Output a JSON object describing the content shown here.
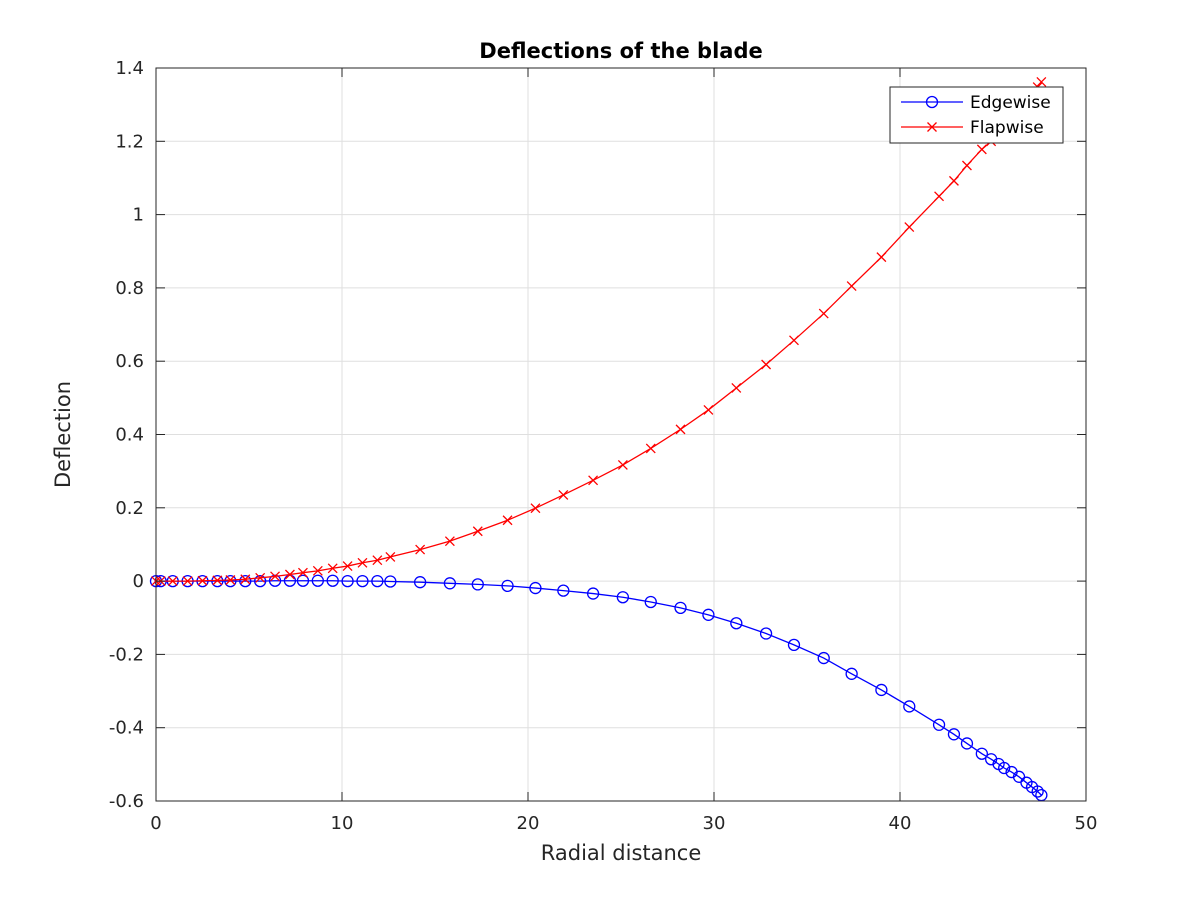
{
  "chart_data": {
    "type": "line",
    "title": "Deflections of the blade",
    "xlabel": "Radial distance",
    "ylabel": "Deflection",
    "xlim": [
      0,
      50
    ],
    "ylim": [
      -0.6,
      1.4
    ],
    "xticks": [
      0,
      10,
      20,
      30,
      40,
      50
    ],
    "xtick_labels": [
      "0",
      "10",
      "20",
      "30",
      "40",
      "50"
    ],
    "yticks": [
      -0.6,
      -0.4,
      -0.2,
      0,
      0.2,
      0.4,
      0.6,
      0.8,
      1,
      1.2,
      1.4
    ],
    "ytick_labels": [
      "-0.6",
      "-0.4",
      "-0.2",
      "0",
      "0.2",
      "0.4",
      "0.6",
      "0.8",
      "1",
      "1.2",
      "1.4"
    ],
    "grid": true,
    "legend_position": "top-right",
    "series": [
      {
        "name": "Edgewise",
        "color": "#0000ff",
        "marker": "circle",
        "x": [
          0,
          0.25,
          0.9,
          1.7,
          2.5,
          3.3,
          4.0,
          4.8,
          5.6,
          6.4,
          7.2,
          7.9,
          8.7,
          9.5,
          10.3,
          11.1,
          11.9,
          12.6,
          14.2,
          15.8,
          17.3,
          18.9,
          20.4,
          21.9,
          23.5,
          25.1,
          26.6,
          28.2,
          29.7,
          31.2,
          32.8,
          34.3,
          35.9,
          37.4,
          39.0,
          40.5,
          42.1,
          42.9,
          43.6,
          44.4,
          44.9,
          45.3,
          45.6,
          46.0,
          46.4,
          46.8,
          47.1,
          47.4,
          47.6
        ],
        "y": [
          0,
          0,
          0,
          0,
          0,
          0,
          0,
          0,
          0,
          0.001,
          0.001,
          0.001,
          0.001,
          0.001,
          0,
          0,
          0,
          -0.001,
          -0.003,
          -0.006,
          -0.009,
          -0.013,
          -0.019,
          -0.026,
          -0.034,
          -0.044,
          -0.057,
          -0.073,
          -0.092,
          -0.115,
          -0.143,
          -0.174,
          -0.21,
          -0.253,
          -0.297,
          -0.342,
          -0.392,
          -0.418,
          -0.443,
          -0.471,
          -0.486,
          -0.499,
          -0.51,
          -0.521,
          -0.534,
          -0.55,
          -0.562,
          -0.574,
          -0.584
        ]
      },
      {
        "name": "Flapwise",
        "color": "#ff0000",
        "marker": "x",
        "x": [
          0,
          0.25,
          0.9,
          1.7,
          2.5,
          3.3,
          4.0,
          4.8,
          5.6,
          6.4,
          7.2,
          7.9,
          8.7,
          9.5,
          10.3,
          11.1,
          11.9,
          12.6,
          14.2,
          15.8,
          17.3,
          18.9,
          20.4,
          21.9,
          23.5,
          25.1,
          26.6,
          28.2,
          29.7,
          31.2,
          32.8,
          34.3,
          35.9,
          37.4,
          39.0,
          40.5,
          42.1,
          42.9,
          43.6,
          44.4,
          44.9,
          45.3,
          45.6,
          46.0,
          46.4,
          46.8,
          47.1,
          47.4,
          47.6
        ],
        "y": [
          0,
          0,
          0,
          0,
          0.001,
          0.002,
          0.003,
          0.005,
          0.009,
          0.013,
          0.018,
          0.023,
          0.028,
          0.035,
          0.041,
          0.05,
          0.057,
          0.066,
          0.086,
          0.109,
          0.136,
          0.166,
          0.199,
          0.235,
          0.275,
          0.317,
          0.362,
          0.414,
          0.467,
          0.527,
          0.591,
          0.657,
          0.73,
          0.805,
          0.884,
          0.966,
          1.05,
          1.092,
          1.134,
          1.178,
          1.2,
          1.222,
          1.245,
          1.268,
          1.29,
          1.312,
          1.33,
          1.348,
          1.362
        ]
      }
    ]
  }
}
